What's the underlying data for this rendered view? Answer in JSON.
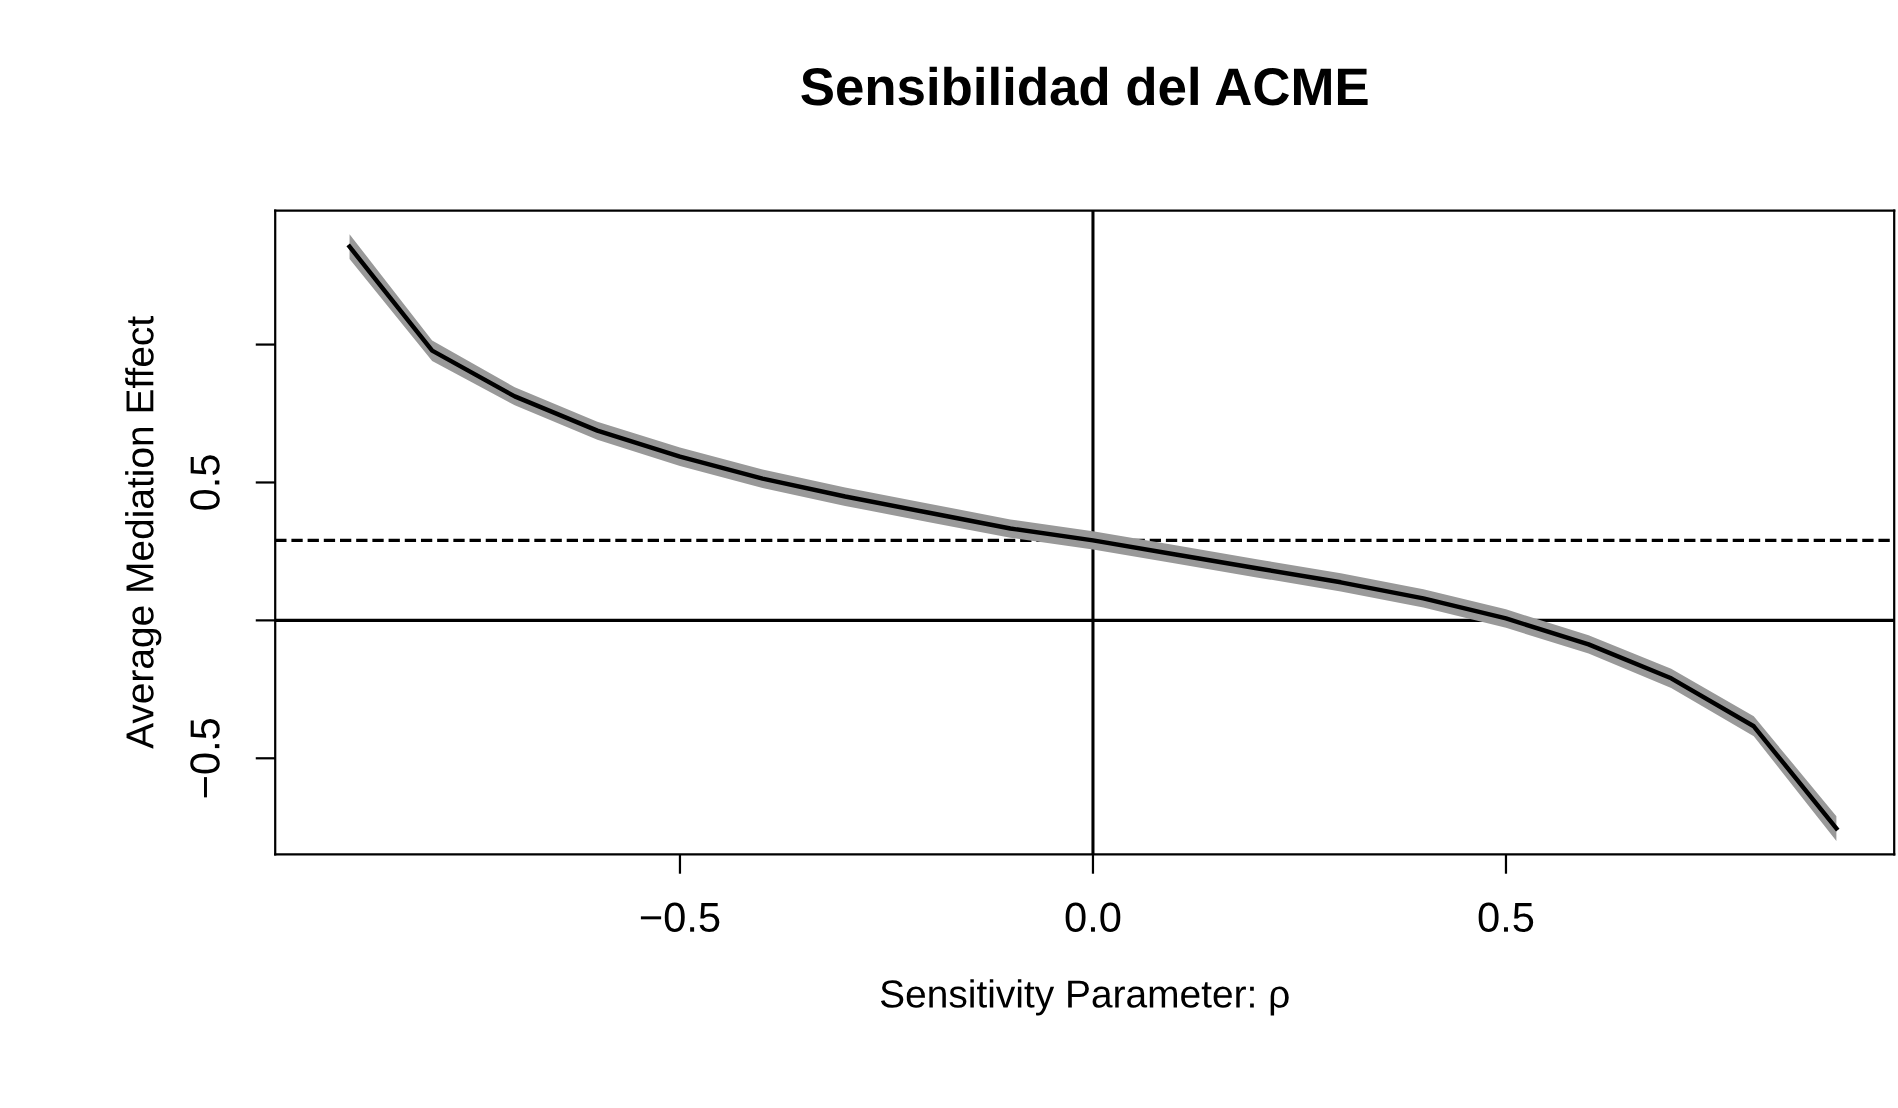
{
  "chart_data": {
    "type": "line",
    "title": "Sensibilidad del ACME",
    "xlabel": "Sensitivity Parameter: ρ",
    "ylabel": "Average Mediation Effect",
    "x": [
      -0.9,
      -0.8,
      -0.7,
      -0.6,
      -0.5,
      -0.4,
      -0.3,
      -0.2,
      -0.1,
      0.0,
      0.1,
      0.2,
      0.3,
      0.4,
      0.5,
      0.6,
      0.7,
      0.8,
      0.9
    ],
    "series": [
      {
        "color": "#000000",
        "values": [
          1.355,
          0.978,
          0.812,
          0.688,
          0.594,
          0.514,
          0.449,
          0.391,
          0.333,
          0.29,
          0.239,
          0.188,
          0.138,
          0.08,
          0.007,
          -0.087,
          -0.21,
          -0.384,
          -0.754
        ],
        "lower": [
          1.31,
          0.94,
          0.78,
          0.655,
          0.56,
          0.48,
          0.415,
          0.357,
          0.3,
          0.257,
          0.206,
          0.155,
          0.105,
          0.047,
          -0.027,
          -0.12,
          -0.245,
          -0.42,
          -0.8
        ],
        "upper": [
          1.4,
          1.015,
          0.845,
          0.72,
          0.627,
          0.547,
          0.482,
          0.424,
          0.366,
          0.323,
          0.272,
          0.221,
          0.171,
          0.113,
          0.04,
          -0.054,
          -0.175,
          -0.348,
          -0.71
        ]
      }
    ],
    "xlim": [
      -0.99,
      0.97
    ],
    "ylim": [
      -0.848,
      1.486
    ],
    "xticks": [
      {
        "value": -0.5,
        "label": "−0.5"
      },
      {
        "value": 0,
        "label": "0.0"
      },
      {
        "value": 0.5,
        "label": "0.5"
      }
    ],
    "yticks": [
      {
        "value": -0.5,
        "label": "−0.5"
      },
      {
        "value": 0,
        "label": null
      },
      {
        "value": 0.5,
        "label": "0.5"
      },
      {
        "value": 1,
        "label": null
      }
    ],
    "ref_lines": [
      {
        "axis": "y",
        "value": 0,
        "line_style": "solid",
        "color": "#000000"
      },
      {
        "axis": "x",
        "value": 0,
        "line_style": "solid",
        "color": "#000000"
      },
      {
        "axis": "y",
        "value": 0.29,
        "line_style": "dashed",
        "color": "#000000"
      }
    ],
    "grid": false,
    "legend": false,
    "marker": "none",
    "line_style": "solid"
  }
}
